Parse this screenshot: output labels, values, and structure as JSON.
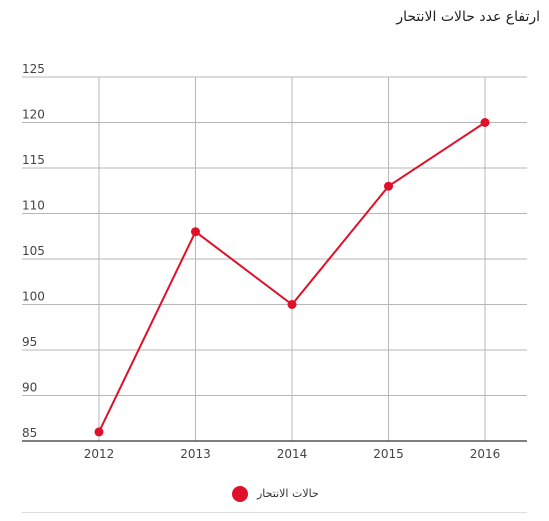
{
  "chart_data": {
    "type": "line",
    "title": "ارتفاع عدد حالات الانتحار",
    "categories": [
      "2012",
      "2013",
      "2014",
      "2015",
      "2016"
    ],
    "series": [
      {
        "name": "حالات الانتحار",
        "values": [
          86,
          108,
          100,
          113,
          120
        ],
        "color": "#e0102a"
      }
    ],
    "ylim": [
      85,
      125
    ],
    "yticks": [
      "85",
      "90",
      "95",
      "100",
      "105",
      "110",
      "115",
      "120",
      "125"
    ],
    "grid": true,
    "legend_position": "bottom-center"
  }
}
